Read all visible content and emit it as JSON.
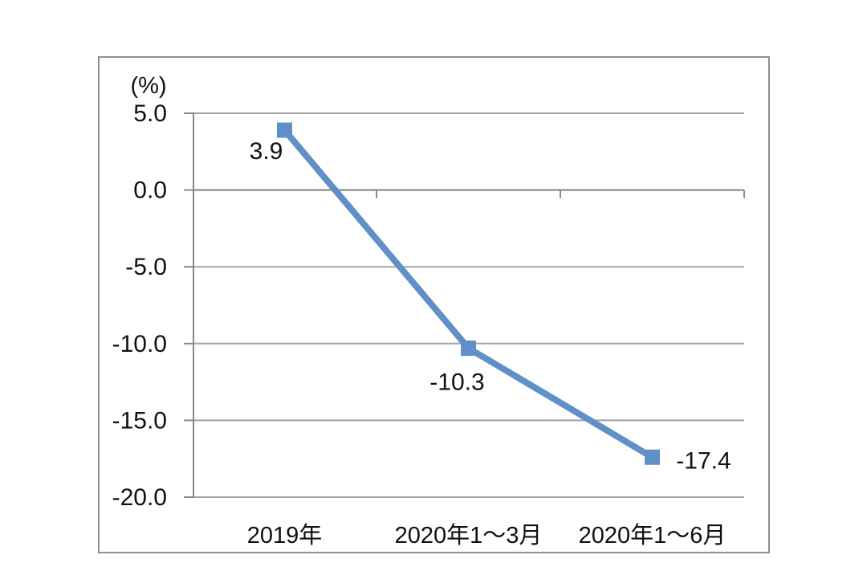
{
  "chart_data": {
    "type": "line",
    "title": "",
    "unit_label": "(%)",
    "categories": [
      "2019年",
      "2020年1～3月",
      "2020年1～6月"
    ],
    "values": [
      3.9,
      -10.3,
      -17.4
    ],
    "data_labels": [
      "3.9",
      "-10.3",
      "-17.4"
    ],
    "ytick_labels": [
      "5.0",
      "0.0",
      "-5.0",
      "-10.0",
      "-15.0",
      "-20.0"
    ],
    "ytick_values": [
      5,
      0,
      -5,
      -10,
      -15,
      -20
    ],
    "ylim": [
      -20.0,
      5.0
    ],
    "xlabel": "",
    "ylabel": "(%)",
    "grid": "horizontal",
    "legend": "none",
    "line_color": "#5f91c8",
    "marker": "square",
    "marker_color": "#5f91c8",
    "gridline_color": "#a3a3a3",
    "axis_color": "#8a8a8a",
    "text_color": "#111111"
  }
}
